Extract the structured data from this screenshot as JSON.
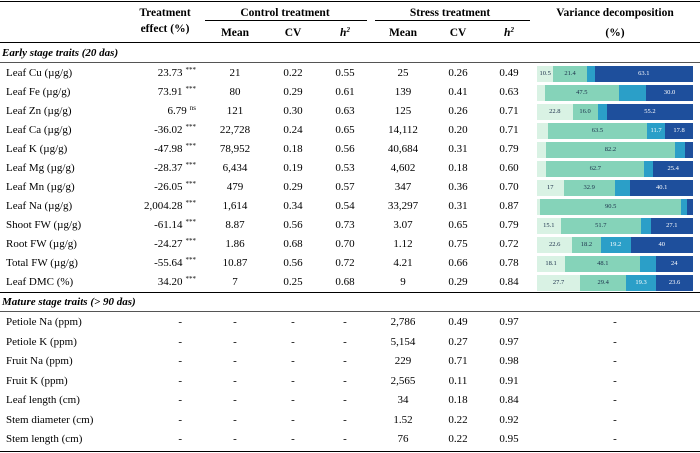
{
  "headers": {
    "treatment_effect_line1": "Treatment",
    "treatment_effect_line2": "effect (%)",
    "control_group": "Control treatment",
    "stress_group": "Stress treatment",
    "variance_line1": "Variance decomposition",
    "variance_line2": "(%)",
    "mean": "Mean",
    "cv": "CV",
    "h2": "h",
    "h2_sup": "2"
  },
  "sections": {
    "early": "Early stage traits (20 das)",
    "mature": "Mature stage traits (> 90 das)"
  },
  "variance_colors": [
    "#d9f2e4",
    "#85d3b9",
    "#2b9fc8",
    "#1e4f9c"
  ],
  "early_traits": [
    {
      "trait": "Leaf Cu (µg/g)",
      "effect": "23.73",
      "sig": "***",
      "c_mean": "21",
      "c_cv": "0.22",
      "c_h2": "0.55",
      "s_mean": "25",
      "s_cv": "0.26",
      "s_h2": "0.49",
      "variance": [
        {
          "v": 10.5,
          "label": "10.5"
        },
        {
          "v": 21.4,
          "label": "21.4"
        },
        {
          "v": 5,
          "label": ""
        },
        {
          "v": 63.1,
          "label": "63.1"
        }
      ]
    },
    {
      "trait": "Leaf Fe (µg/g)",
      "effect": "73.91",
      "sig": "***",
      "c_mean": "80",
      "c_cv": "0.29",
      "c_h2": "0.61",
      "s_mean": "139",
      "s_cv": "0.41",
      "s_h2": "0.63",
      "variance": [
        {
          "v": 5,
          "label": ""
        },
        {
          "v": 47.5,
          "label": "47.5"
        },
        {
          "v": 17.5,
          "label": ""
        },
        {
          "v": 30,
          "label": "30.0"
        }
      ]
    },
    {
      "trait": "Leaf Zn (µg/g)",
      "effect": "6.79",
      "sig": "ns",
      "c_mean": "121",
      "c_cv": "0.30",
      "c_h2": "0.63",
      "s_mean": "125",
      "s_cv": "0.26",
      "s_h2": "0.71",
      "variance": [
        {
          "v": 22.8,
          "label": "22.8"
        },
        {
          "v": 16,
          "label": "16.0"
        },
        {
          "v": 6,
          "label": ""
        },
        {
          "v": 55.2,
          "label": "55.2"
        }
      ]
    },
    {
      "trait": "Leaf Ca (µg/g)",
      "effect": "-36.02",
      "sig": "***",
      "c_mean": "22,728",
      "c_cv": "0.24",
      "c_h2": "0.65",
      "s_mean": "14,112",
      "s_cv": "0.20",
      "s_h2": "0.71",
      "variance": [
        {
          "v": 7,
          "label": ""
        },
        {
          "v": 63.5,
          "label": "63.5"
        },
        {
          "v": 11.7,
          "label": "11.7"
        },
        {
          "v": 17.8,
          "label": "17.8"
        }
      ]
    },
    {
      "trait": "Leaf K (µg/g)",
      "effect": "-47.98",
      "sig": "***",
      "c_mean": "78,952",
      "c_cv": "0.18",
      "c_h2": "0.56",
      "s_mean": "40,684",
      "s_cv": "0.31",
      "s_h2": "0.79",
      "variance": [
        {
          "v": 6,
          "label": ""
        },
        {
          "v": 82.2,
          "label": "82.2"
        },
        {
          "v": 6.8,
          "label": ""
        },
        {
          "v": 5,
          "label": ""
        }
      ]
    },
    {
      "trait": "Leaf Mg (µg/g)",
      "effect": "-28.37",
      "sig": "***",
      "c_mean": "6,434",
      "c_cv": "0.19",
      "c_h2": "0.53",
      "s_mean": "4,602",
      "s_cv": "0.18",
      "s_h2": "0.60",
      "variance": [
        {
          "v": 6,
          "label": ""
        },
        {
          "v": 62.7,
          "label": "62.7"
        },
        {
          "v": 5.9,
          "label": ""
        },
        {
          "v": 25.4,
          "label": "25.4"
        }
      ]
    },
    {
      "trait": "Leaf Mn (µg/g)",
      "effect": "-26.05",
      "sig": "***",
      "c_mean": "479",
      "c_cv": "0.29",
      "c_h2": "0.57",
      "s_mean": "347",
      "s_cv": "0.36",
      "s_h2": "0.70",
      "variance": [
        {
          "v": 17,
          "label": "17"
        },
        {
          "v": 32.9,
          "label": "32.9"
        },
        {
          "v": 10,
          "label": ""
        },
        {
          "v": 40.1,
          "label": "40.1"
        }
      ]
    },
    {
      "trait": "Leaf Na (µg/g)",
      "effect": "2,004.28",
      "sig": "***",
      "c_mean": "1,614",
      "c_cv": "0.34",
      "c_h2": "0.54",
      "s_mean": "33,297",
      "s_cv": "0.31",
      "s_h2": "0.87",
      "variance": [
        {
          "v": 2,
          "label": ""
        },
        {
          "v": 90.5,
          "label": "90.5"
        },
        {
          "v": 3.5,
          "label": ""
        },
        {
          "v": 4,
          "label": ""
        }
      ]
    },
    {
      "trait": "Shoot FW (µg/g)",
      "effect": "-61.14",
      "sig": "***",
      "c_mean": "8.87",
      "c_cv": "0.56",
      "c_h2": "0.73",
      "s_mean": "3.07",
      "s_cv": "0.65",
      "s_h2": "0.79",
      "variance": [
        {
          "v": 15.1,
          "label": "15.1"
        },
        {
          "v": 51.7,
          "label": "51.7"
        },
        {
          "v": 6.1,
          "label": ""
        },
        {
          "v": 27.1,
          "label": "27.1"
        }
      ]
    },
    {
      "trait": "Root FW (µg/g)",
      "effect": "-24.27",
      "sig": "***",
      "c_mean": "1.86",
      "c_cv": "0.68",
      "c_h2": "0.70",
      "s_mean": "1.12",
      "s_cv": "0.75",
      "s_h2": "0.72",
      "variance": [
        {
          "v": 22.6,
          "label": "22.6"
        },
        {
          "v": 18.2,
          "label": "18.2"
        },
        {
          "v": 19.2,
          "label": "19.2"
        },
        {
          "v": 40,
          "label": "40"
        }
      ]
    },
    {
      "trait": "Total FW (µg/g)",
      "effect": "-55.64",
      "sig": "***",
      "c_mean": "10.87",
      "c_cv": "0.56",
      "c_h2": "0.72",
      "s_mean": "4.21",
      "s_cv": "0.66",
      "s_h2": "0.78",
      "variance": [
        {
          "v": 18.1,
          "label": "18.1"
        },
        {
          "v": 48.1,
          "label": "48.1"
        },
        {
          "v": 9.8,
          "label": ""
        },
        {
          "v": 24,
          "label": "24"
        }
      ]
    },
    {
      "trait": "Leaf DMC (%)",
      "effect": "34.20",
      "sig": "***",
      "c_mean": "7",
      "c_cv": "0.25",
      "c_h2": "0.68",
      "s_mean": "9",
      "s_cv": "0.29",
      "s_h2": "0.84",
      "variance": [
        {
          "v": 27.7,
          "label": "27.7"
        },
        {
          "v": 29.4,
          "label": "29.4"
        },
        {
          "v": 19.3,
          "label": "19.3"
        },
        {
          "v": 23.6,
          "label": "23.6"
        }
      ]
    }
  ],
  "mature_traits": [
    {
      "trait": "Petiole Na (ppm)",
      "effect": "-",
      "c_mean": "-",
      "c_cv": "-",
      "c_h2": "-",
      "s_mean": "2,786",
      "s_cv": "0.49",
      "s_h2": "0.97",
      "variance": "-"
    },
    {
      "trait": "Petiole K (ppm)",
      "effect": "-",
      "c_mean": "-",
      "c_cv": "-",
      "c_h2": "-",
      "s_mean": "5,154",
      "s_cv": "0.27",
      "s_h2": "0.97",
      "variance": "-"
    },
    {
      "trait": "Fruit Na (ppm)",
      "effect": "-",
      "c_mean": "-",
      "c_cv": "-",
      "c_h2": "-",
      "s_mean": "229",
      "s_cv": "0.71",
      "s_h2": "0.98",
      "variance": "-"
    },
    {
      "trait": "Fruit K (ppm)",
      "effect": "-",
      "c_mean": "-",
      "c_cv": "-",
      "c_h2": "-",
      "s_mean": "2,565",
      "s_cv": "0.11",
      "s_h2": "0.91",
      "variance": "-"
    },
    {
      "trait": "Leaf length (cm)",
      "effect": "-",
      "c_mean": "-",
      "c_cv": "-",
      "c_h2": "-",
      "s_mean": "34",
      "s_cv": "0.18",
      "s_h2": "0.84",
      "variance": "-"
    },
    {
      "trait": "Stem diameter (cm)",
      "effect": "-",
      "c_mean": "-",
      "c_cv": "-",
      "c_h2": "-",
      "s_mean": "1.52",
      "s_cv": "0.22",
      "s_h2": "0.92",
      "variance": "-"
    },
    {
      "trait": "Stem length (cm)",
      "effect": "-",
      "c_mean": "-",
      "c_cv": "-",
      "c_h2": "-",
      "s_mean": "76",
      "s_cv": "0.22",
      "s_h2": "0.95",
      "variance": "-"
    }
  ]
}
